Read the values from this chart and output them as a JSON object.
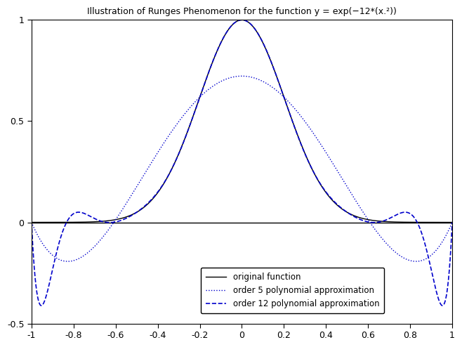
{
  "title": "Illustration of Runges Phenomenon for the function y = exp(-12*(x.^2))",
  "xlim": [
    -1,
    1
  ],
  "ylim": [
    -0.5,
    1.0
  ],
  "original_color": "#000000",
  "order5_color": "#0000cc",
  "order12_color": "#0000cc",
  "original_label": "original function",
  "order5_label": "order 5 polynomial approximation",
  "order12_label": "order 12 polynomial approximation",
  "original_linestyle": "-",
  "order5_linestyle": ":",
  "order12_linestyle": "--",
  "original_linewidth": 1.0,
  "order5_linewidth": 1.0,
  "order12_linewidth": 1.2,
  "figsize": [
    6.58,
    4.94
  ],
  "dpi": 100,
  "background_color": "#ffffff",
  "xticks": [
    -1,
    -0.8,
    -0.6,
    -0.4,
    -0.2,
    0,
    0.2,
    0.4,
    0.6,
    0.8,
    1
  ],
  "yticks": [
    -0.5,
    0,
    0.5,
    1
  ],
  "legend_loc": "lower right",
  "title_fontsize": 9,
  "tick_labelsize": 9
}
